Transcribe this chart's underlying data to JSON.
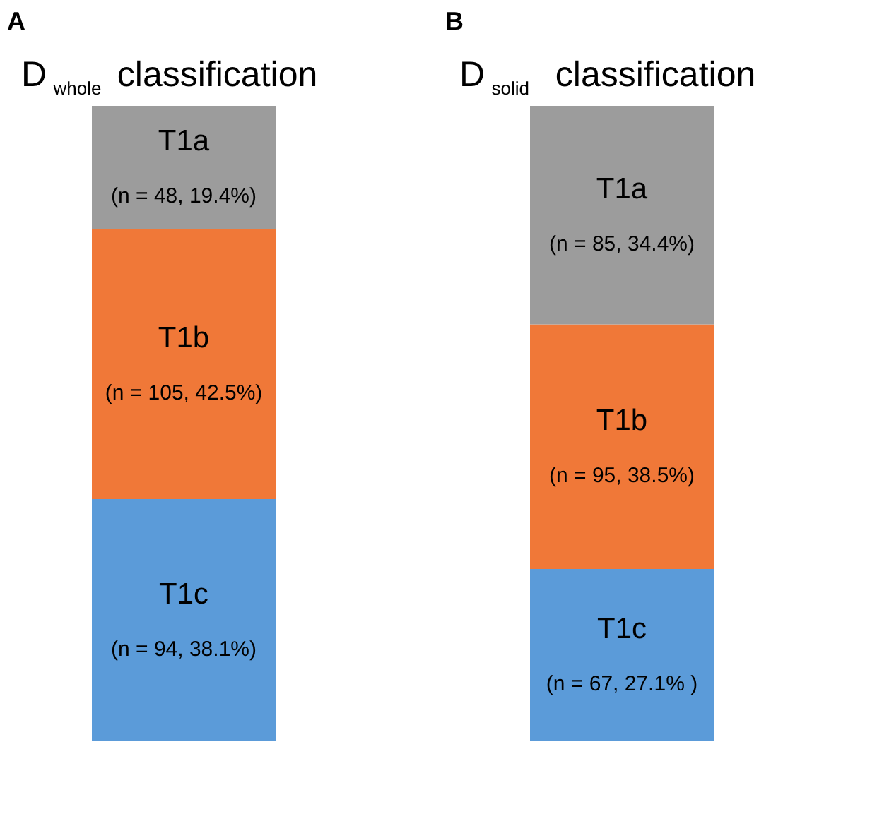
{
  "chart_data": [
    {
      "type": "bar",
      "stacked": true,
      "title": "D $_{whole}$ classification",
      "annotations": [
        "A"
      ],
      "categories": [
        null
      ],
      "series": [
        {
          "name": "T1c",
          "color": "#5b9bd9",
          "values": [
            38.1
          ],
          "value_labels": [
            "(n = 94, 38.1%)"
          ]
        },
        {
          "name": "T1b",
          "color": "#f07838",
          "values": [
            42.5
          ],
          "value_labels": [
            "(n = 105, 42.5%)"
          ]
        },
        {
          "name": "T1a",
          "color": "#9c9c9c",
          "values": [
            19.4
          ],
          "value_labels": [
            "(n = 48, 19.4%)"
          ]
        }
      ],
      "tick_labels": false
    },
    {
      "type": "bar",
      "stacked": true,
      "title": "D $_{solid}$ classification",
      "annotations": [
        "B"
      ],
      "categories": [
        null
      ],
      "series": [
        {
          "name": "T1c",
          "color": "#5b9bd9",
          "values": [
            27.1
          ],
          "value_labels": [
            "(n = 67, 27.1% )"
          ]
        },
        {
          "name": "T1b",
          "color": "#f07838",
          "values": [
            38.5
          ],
          "value_labels": [
            "(n = 95, 38.5%)"
          ]
        },
        {
          "name": "T1a",
          "color": "#9c9c9c",
          "values": [
            34.4
          ],
          "value_labels": [
            "(n = 85, 34.4%)"
          ]
        }
      ],
      "tick_labels": false
    }
  ]
}
